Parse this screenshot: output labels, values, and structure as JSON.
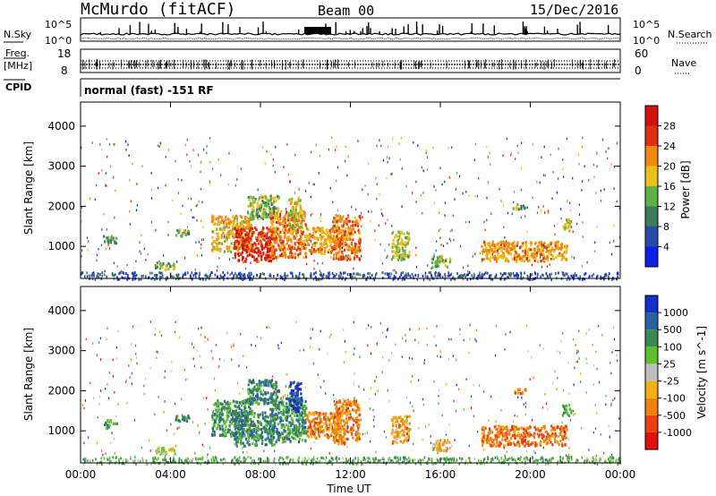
{
  "header": {
    "title": "McMurdo (fitACF)",
    "beam": "Beam 00",
    "date": "15/Dec/2016"
  },
  "noise_panel": {
    "left_label": "N.Sky",
    "right_label": "N.Search",
    "left_ticks": [
      "10^5",
      "10^0"
    ],
    "right_ticks": [
      "10^5",
      "10^0"
    ]
  },
  "freq_panel": {
    "left_label_1": "Freq.",
    "left_label_2": "[MHz]",
    "left_ticks": [
      "18",
      "8"
    ],
    "right_label": "Nave",
    "right_ticks": [
      "60",
      "0"
    ]
  },
  "cpid_panel": {
    "label": "CPID",
    "text": "normal (fast) -151 RF"
  },
  "chart_data": [
    {
      "type": "heatmap",
      "ylabel": "Slant Range [km]",
      "y_ticks": [
        1000,
        2000,
        3000,
        4000
      ],
      "ylim": [
        200,
        4600
      ],
      "x_ticks": [
        "00:00",
        "04:00",
        "08:00",
        "12:00",
        "16:00",
        "20:00",
        "00:00"
      ],
      "xlim_hours": [
        0,
        24
      ],
      "colorbar": {
        "label": "Power [dB]",
        "ticks": [
          "4",
          "8",
          "12",
          "16",
          "20",
          "24",
          "28"
        ],
        "colors": [
          "#1020e8",
          "#2a4aa8",
          "#3e7a5a",
          "#5fb04a",
          "#e8c01a",
          "#f08a10",
          "#e03010",
          "#d41010"
        ],
        "range": [
          0,
          30
        ]
      },
      "echo_regions": [
        {
          "t": [
            1.0,
            1.6
          ],
          "r": [
            1100,
            1300
          ],
          "level": 0.35
        },
        {
          "t": [
            3.3,
            4.2
          ],
          "r": [
            450,
            620
          ],
          "level": 0.45
        },
        {
          "t": [
            4.2,
            4.8
          ],
          "r": [
            1250,
            1450
          ],
          "level": 0.4
        },
        {
          "t": [
            5.8,
            7.6
          ],
          "r": [
            900,
            1800
          ],
          "level": 0.6
        },
        {
          "t": [
            6.8,
            8.6
          ],
          "r": [
            650,
            1500
          ],
          "level": 0.85
        },
        {
          "t": [
            7.4,
            8.8
          ],
          "r": [
            1700,
            2300
          ],
          "level": 0.45
        },
        {
          "t": [
            8.4,
            10.0
          ],
          "r": [
            750,
            1900
          ],
          "level": 0.7
        },
        {
          "t": [
            9.2,
            9.8
          ],
          "r": [
            1500,
            2250
          ],
          "level": 0.55
        },
        {
          "t": [
            10.0,
            11.6
          ],
          "r": [
            850,
            1500
          ],
          "level": 0.65
        },
        {
          "t": [
            11.2,
            12.4
          ],
          "r": [
            700,
            1800
          ],
          "level": 0.7
        },
        {
          "t": [
            13.8,
            14.6
          ],
          "r": [
            700,
            1400
          ],
          "level": 0.5
        },
        {
          "t": [
            15.6,
            16.4
          ],
          "r": [
            500,
            800
          ],
          "level": 0.45
        },
        {
          "t": [
            17.8,
            21.6
          ],
          "r": [
            650,
            1150
          ],
          "level": 0.65
        },
        {
          "t": [
            19.2,
            19.8
          ],
          "r": [
            1950,
            2080
          ],
          "level": 0.4
        },
        {
          "t": [
            21.4,
            21.8
          ],
          "r": [
            1400,
            1700
          ],
          "level": 0.55
        }
      ]
    },
    {
      "type": "heatmap",
      "ylabel": "Slant Range [km]",
      "y_ticks": [
        1000,
        2000,
        3000,
        4000
      ],
      "ylim": [
        200,
        4600
      ],
      "x_ticks": [
        "00:00",
        "04:00",
        "08:00",
        "12:00",
        "16:00",
        "20:00",
        "00:00"
      ],
      "xlabel": "Time UT",
      "xlim_hours": [
        0,
        24
      ],
      "colorbar": {
        "label": "Velocity [m s^-1]",
        "ticks": [
          "1000",
          "500",
          "100",
          "25",
          "-25",
          "-100",
          "-500",
          "-1000"
        ],
        "colors": [
          "#1030c8",
          "#2a60a0",
          "#3a8a50",
          "#5cc030",
          "#c0c0c0",
          "#f0b010",
          "#f08010",
          "#e84010",
          "#e01010"
        ],
        "range": [
          -1200,
          1200
        ]
      },
      "echo_regions": [
        {
          "t": [
            1.0,
            1.6
          ],
          "r": [
            1100,
            1300
          ],
          "level": 0.3
        },
        {
          "t": [
            3.3,
            4.2
          ],
          "r": [
            450,
            620
          ],
          "level": 0.48
        },
        {
          "t": [
            4.2,
            4.8
          ],
          "r": [
            1250,
            1450
          ],
          "level": 0.25
        },
        {
          "t": [
            5.8,
            7.6
          ],
          "r": [
            900,
            1800
          ],
          "level": 0.28
        },
        {
          "t": [
            6.8,
            8.6
          ],
          "r": [
            650,
            1500
          ],
          "level": 0.28
        },
        {
          "t": [
            7.4,
            8.8
          ],
          "r": [
            1700,
            2300
          ],
          "level": 0.28
        },
        {
          "t": [
            8.4,
            10.0
          ],
          "r": [
            750,
            1900
          ],
          "level": 0.28
        },
        {
          "t": [
            9.2,
            9.8
          ],
          "r": [
            1500,
            2250
          ],
          "level": 0.08
        },
        {
          "t": [
            10.0,
            11.6
          ],
          "r": [
            850,
            1500
          ],
          "level": 0.72
        },
        {
          "t": [
            11.2,
            12.4
          ],
          "r": [
            700,
            1800
          ],
          "level": 0.72
        },
        {
          "t": [
            13.8,
            14.6
          ],
          "r": [
            700,
            1400
          ],
          "level": 0.66
        },
        {
          "t": [
            15.6,
            16.4
          ],
          "r": [
            500,
            800
          ],
          "level": 0.6
        },
        {
          "t": [
            17.8,
            21.6
          ],
          "r": [
            650,
            1150
          ],
          "level": 0.75
        },
        {
          "t": [
            19.2,
            19.8
          ],
          "r": [
            1950,
            2080
          ],
          "level": 0.7
        },
        {
          "t": [
            21.4,
            21.8
          ],
          "r": [
            1400,
            1700
          ],
          "level": 0.35
        }
      ]
    }
  ]
}
